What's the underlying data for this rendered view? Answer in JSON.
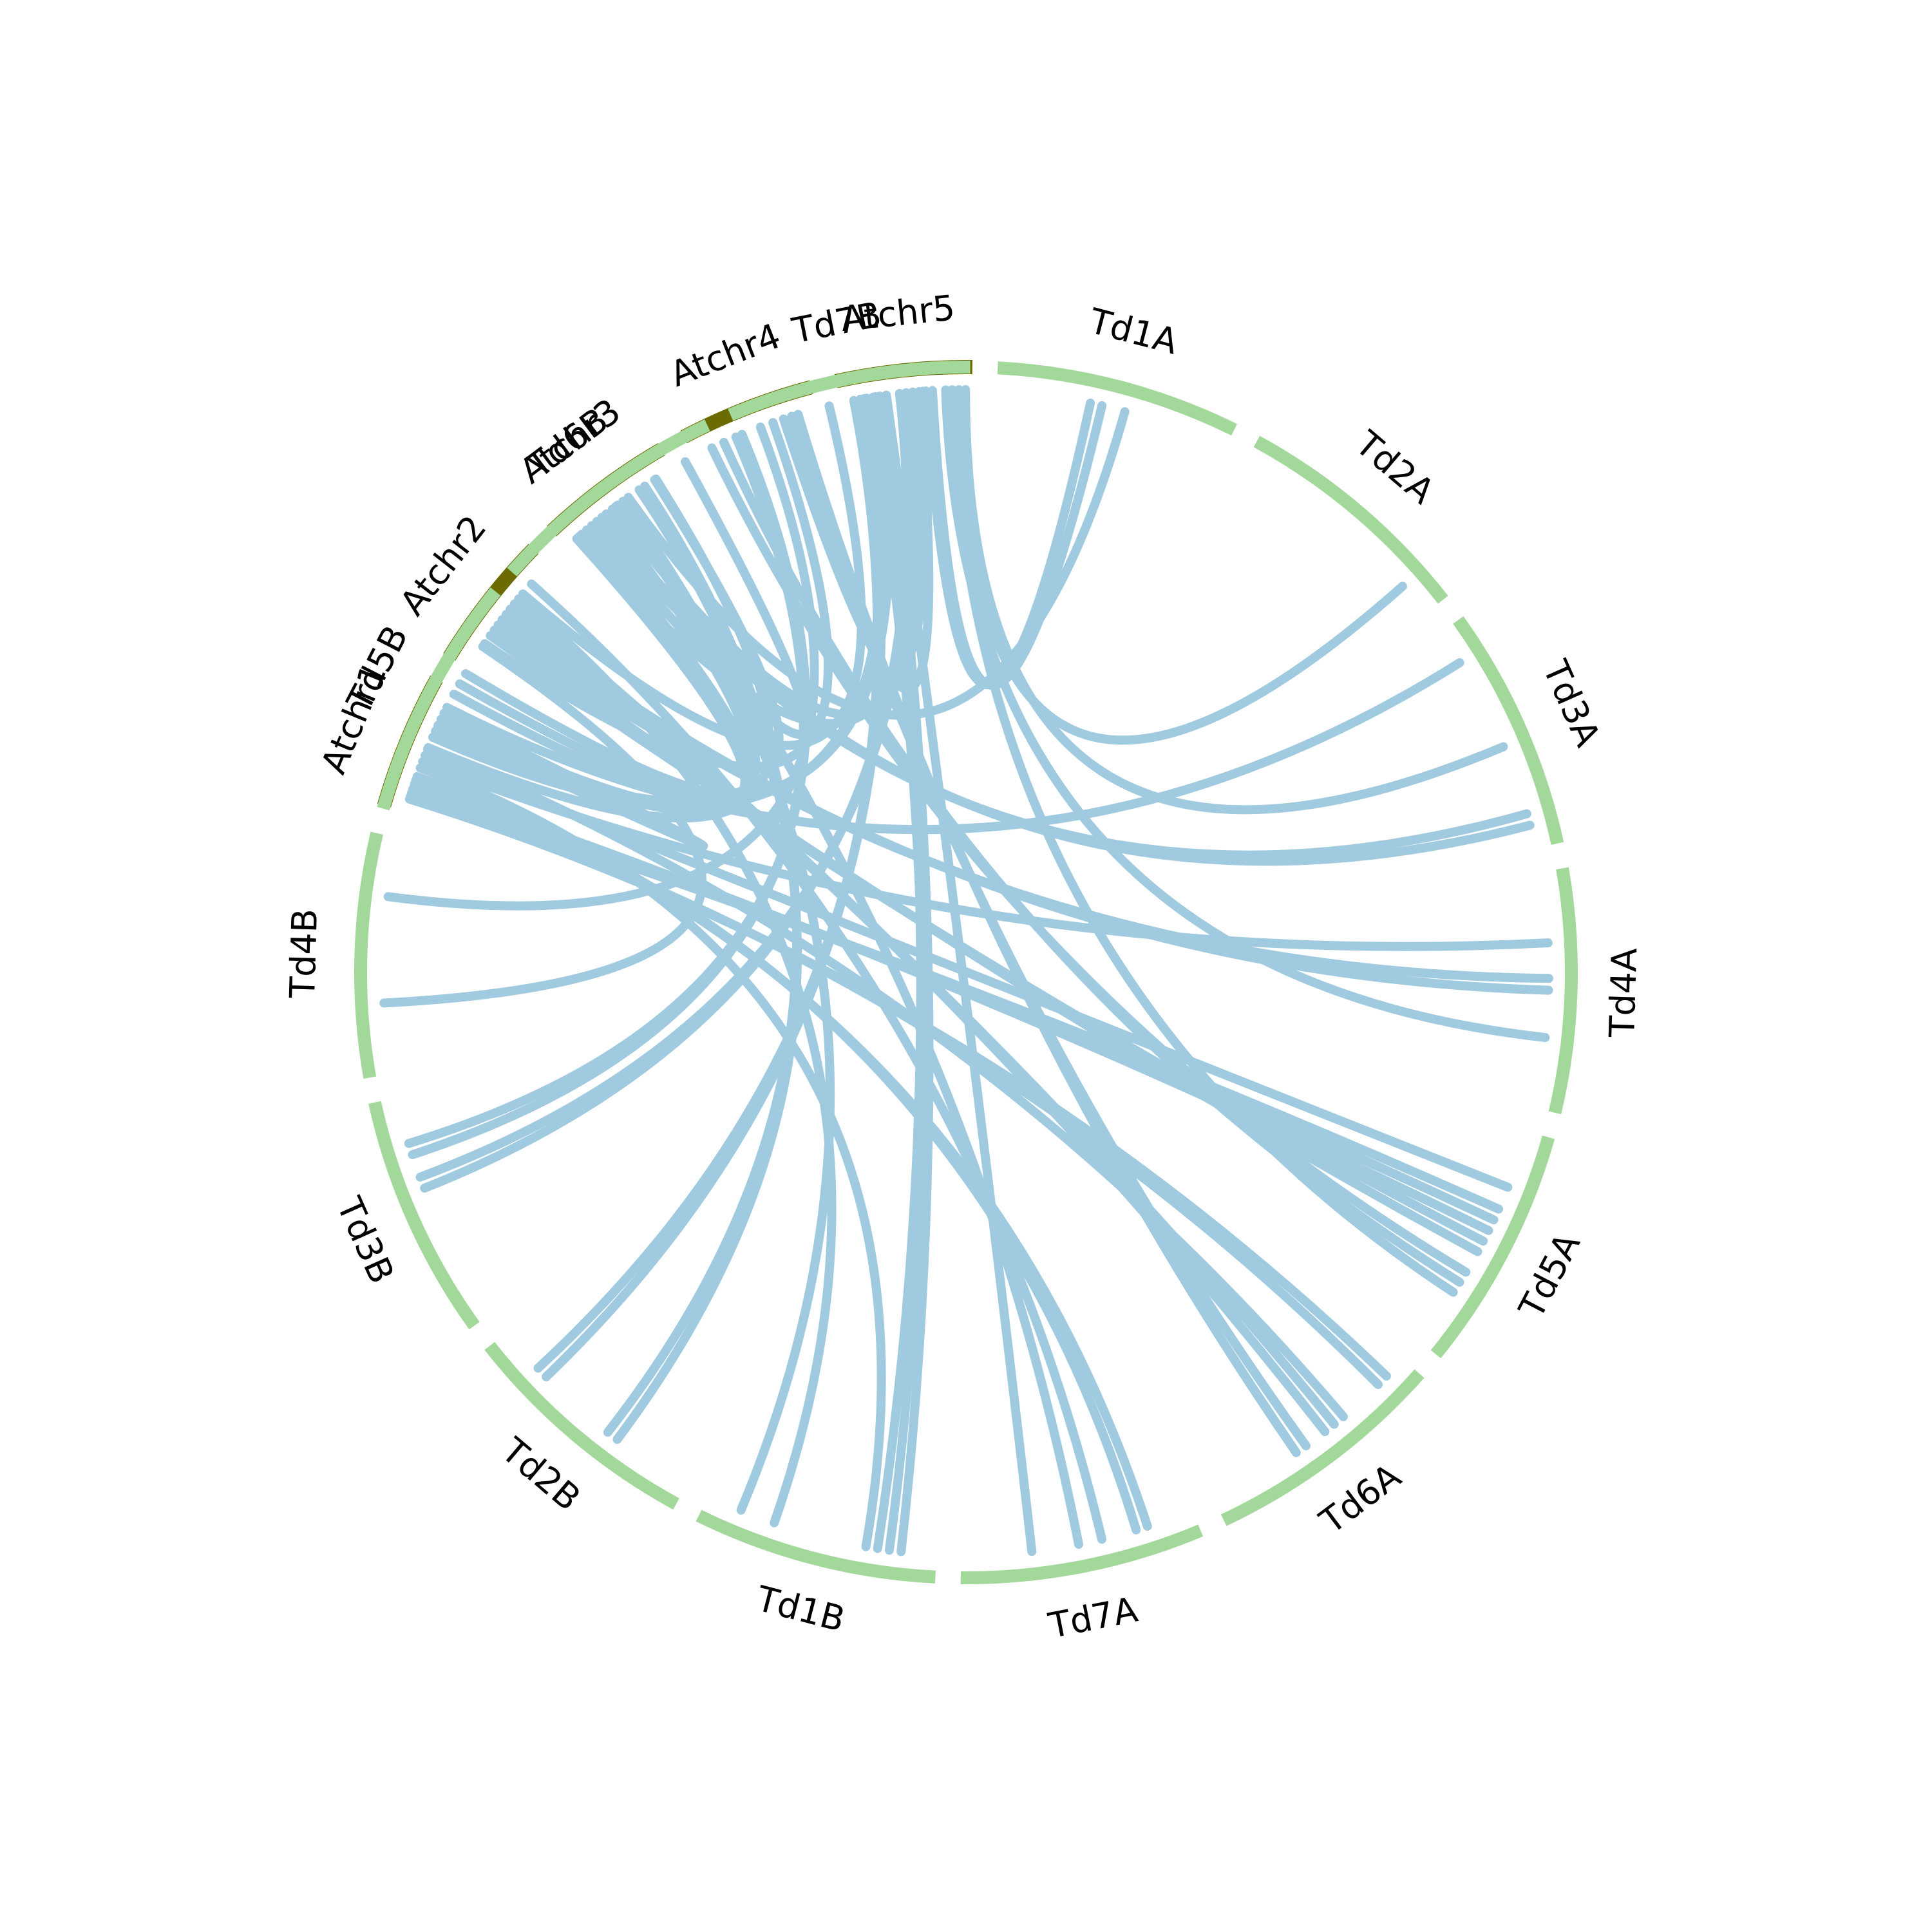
{
  "colors": {
    "arabidopsis": "#6b6b00",
    "wheat": "#a3d89b",
    "link": "#9fcae0",
    "label": "#000000",
    "background": "#ffffff"
  },
  "chromosomes": [
    {
      "id": "Atchr1",
      "label": "Atchr1",
      "group": "arabidopsis"
    },
    {
      "id": "Atchr2",
      "label": "Atchr2",
      "group": "arabidopsis"
    },
    {
      "id": "Atchr3",
      "label": "Atchr3",
      "group": "arabidopsis"
    },
    {
      "id": "Atchr4",
      "label": "Atchr4",
      "group": "arabidopsis"
    },
    {
      "id": "Atchr5",
      "label": "Atchr5",
      "group": "arabidopsis"
    },
    {
      "id": "Td1A",
      "label": "Td1A",
      "group": "wheat"
    },
    {
      "id": "Td2A",
      "label": "Td2A",
      "group": "wheat"
    },
    {
      "id": "Td3A",
      "label": "Td3A",
      "group": "wheat"
    },
    {
      "id": "Td4A",
      "label": "Td4A",
      "group": "wheat"
    },
    {
      "id": "Td5A",
      "label": "Td5A",
      "group": "wheat"
    },
    {
      "id": "Td6A",
      "label": "Td6A",
      "group": "wheat"
    },
    {
      "id": "Td7A",
      "label": "Td7A",
      "group": "wheat"
    },
    {
      "id": "Td1B",
      "label": "Td1B",
      "group": "wheat"
    },
    {
      "id": "Td2B",
      "label": "Td2B",
      "group": "wheat"
    },
    {
      "id": "Td3B",
      "label": "Td3B",
      "group": "wheat"
    },
    {
      "id": "Td4B",
      "label": "Td4B",
      "group": "wheat"
    },
    {
      "id": "Td5B",
      "label": "Td5B",
      "group": "wheat"
    },
    {
      "id": "Td6B",
      "label": "Td6B",
      "group": "wheat"
    },
    {
      "id": "Td7B",
      "label": "Td7B",
      "group": "wheat"
    }
  ],
  "links": [
    [
      "Atchr1",
      0.15,
      "Td5A",
      0.35
    ],
    [
      "Atchr1",
      0.18,
      "Td5A",
      0.4
    ],
    [
      "Atchr1",
      0.22,
      "Td5A",
      0.45
    ],
    [
      "Atchr1",
      0.1,
      "Td6A",
      0.1
    ],
    [
      "Atchr1",
      0.12,
      "Td6A",
      0.15
    ],
    [
      "Atchr1",
      0.25,
      "Td7A",
      0.2
    ],
    [
      "Atchr1",
      0.28,
      "Td7A",
      0.25
    ],
    [
      "Atchr1",
      0.35,
      "Td1B",
      0.3
    ],
    [
      "Atchr1",
      0.4,
      "Td4A",
      0.3
    ],
    [
      "Atchr1",
      0.45,
      "Td5A",
      0.25
    ],
    [
      "Atchr1",
      0.5,
      "Td6A",
      0.35
    ],
    [
      "Atchr1",
      0.6,
      "Td7B",
      0.55
    ],
    [
      "Atchr1",
      0.65,
      "Td7B",
      0.6
    ],
    [
      "Atchr1",
      0.7,
      "Td6B",
      0.45
    ],
    [
      "Atchr1",
      0.75,
      "Td6B",
      0.5
    ],
    [
      "Atchr1",
      0.8,
      "Td5B",
      0.4
    ],
    [
      "Atchr1",
      0.85,
      "Td3A",
      0.15
    ],
    [
      "Atchr2",
      0.2,
      "Td4B",
      0.3
    ],
    [
      "Atchr2",
      0.3,
      "Td5A",
      0.5
    ],
    [
      "Atchr2",
      0.35,
      "Td5A",
      0.55
    ],
    [
      "Atchr2",
      0.45,
      "Td4A",
      0.45
    ],
    [
      "Atchr2",
      0.5,
      "Td4A",
      0.5
    ],
    [
      "Atchr2",
      0.55,
      "Td6A",
      0.4
    ],
    [
      "Atchr2",
      0.6,
      "Td6A",
      0.45
    ],
    [
      "Atchr2",
      0.65,
      "Td1B",
      0.7
    ],
    [
      "Atchr2",
      0.4,
      "Td6B",
      0.7
    ],
    [
      "Atchr2",
      0.7,
      "Td7B",
      0.4
    ],
    [
      "Atchr2",
      0.8,
      "Td7A",
      0.4
    ],
    [
      "Atchr3",
      0.1,
      "Td5B",
      0.55
    ],
    [
      "Atchr3",
      0.15,
      "Td5B",
      0.6
    ],
    [
      "Atchr3",
      0.2,
      "Td5B",
      0.65
    ],
    [
      "Atchr3",
      0.25,
      "Td6B",
      0.85
    ],
    [
      "Atchr3",
      0.3,
      "Td3A",
      0.85
    ],
    [
      "Atchr3",
      0.35,
      "Td3A",
      0.9
    ],
    [
      "Atchr3",
      0.45,
      "Td7B",
      0.8
    ],
    [
      "Atchr3",
      0.5,
      "Td7A",
      0.5
    ],
    [
      "Atchr3",
      0.55,
      "Td1B",
      0.85
    ],
    [
      "Atchr3",
      0.6,
      "Td1A",
      0.55
    ],
    [
      "Atchr3",
      0.7,
      "Td2B",
      0.35
    ],
    [
      "Atchr3",
      0.75,
      "Td2B",
      0.4
    ],
    [
      "Atchr3",
      0.85,
      "Td5B",
      0.3
    ],
    [
      "Atchr4",
      0.15,
      "Td5A",
      0.65
    ],
    [
      "Atchr4",
      0.25,
      "Td5A",
      0.7
    ],
    [
      "Atchr4",
      0.35,
      "Td3B",
      0.75
    ],
    [
      "Atchr4",
      0.4,
      "Td3B",
      0.8
    ],
    [
      "Atchr4",
      0.55,
      "Td4B",
      0.75
    ],
    [
      "Atchr4",
      0.65,
      "Td5B",
      0.8
    ],
    [
      "Atchr4",
      0.8,
      "Td6A",
      0.55
    ],
    [
      "Atchr4",
      0.85,
      "Td6A",
      0.6
    ],
    [
      "Atchr5",
      0.1,
      "Td2B",
      0.75
    ],
    [
      "Atchr5",
      0.15,
      "Td2B",
      0.8
    ],
    [
      "Atchr5",
      0.2,
      "Td1B",
      0.2
    ],
    [
      "Atchr5",
      0.25,
      "Td1B",
      0.25
    ],
    [
      "Atchr5",
      0.3,
      "Td1B",
      0.15
    ],
    [
      "Atchr5",
      0.35,
      "Td7A",
      0.7
    ],
    [
      "Atchr5",
      0.45,
      "Td3B",
      0.6
    ],
    [
      "Atchr5",
      0.5,
      "Td3B",
      0.65
    ],
    [
      "Atchr5",
      0.55,
      "Td6B",
      0.3
    ],
    [
      "Atchr5",
      0.6,
      "Td7B",
      0.2
    ],
    [
      "Atchr5",
      0.65,
      "Td1A",
      0.4
    ],
    [
      "Atchr5",
      0.7,
      "Td1A",
      0.45
    ],
    [
      "Atchr5",
      0.8,
      "Td4A",
      0.7
    ],
    [
      "Atchr5",
      0.85,
      "Td5A",
      0.75
    ],
    [
      "Atchr5",
      0.9,
      "Td2A",
      0.85
    ],
    [
      "Atchr5",
      0.95,
      "Td3A",
      0.55
    ]
  ]
}
